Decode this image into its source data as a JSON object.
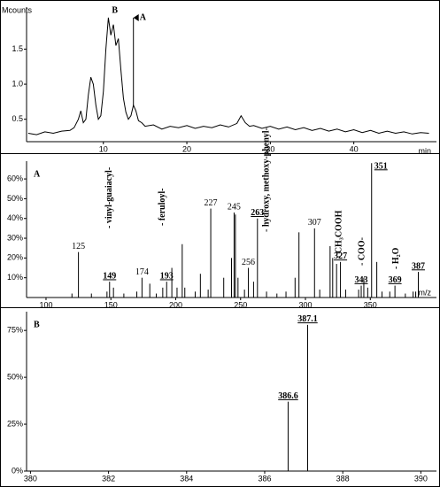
{
  "chart_data": [
    {
      "type": "line",
      "y_label": "Mcounts",
      "x_label": "min",
      "color": "#000000",
      "x": [
        1,
        2,
        3,
        4,
        5,
        6,
        6.5,
        7,
        7.3,
        7.6,
        7.9,
        8.2,
        8.5,
        8.8,
        9.1,
        9.4,
        9.7,
        10,
        10.3,
        10.6,
        10.9,
        11.2,
        11.5,
        11.8,
        12.1,
        12.4,
        12.7,
        13,
        13.3,
        13.6,
        13.9,
        14.2,
        14.6,
        15,
        16,
        17,
        18,
        19,
        20,
        21,
        22,
        23,
        24,
        25,
        26,
        26.5,
        27,
        27.5,
        28,
        29,
        30,
        31,
        32,
        33,
        34,
        35,
        36,
        37,
        38,
        39,
        40,
        41,
        42,
        43,
        44,
        45,
        46,
        47,
        48,
        49
      ],
      "values": [
        0.3,
        0.28,
        0.32,
        0.3,
        0.33,
        0.34,
        0.38,
        0.5,
        0.62,
        0.45,
        0.5,
        0.85,
        1.1,
        1.0,
        0.7,
        0.5,
        0.55,
        0.9,
        1.5,
        1.95,
        1.7,
        1.85,
        1.55,
        1.65,
        1.2,
        0.8,
        0.6,
        0.5,
        0.55,
        0.7,
        0.62,
        0.48,
        0.45,
        0.4,
        0.42,
        0.36,
        0.4,
        0.38,
        0.41,
        0.37,
        0.4,
        0.38,
        0.42,
        0.39,
        0.44,
        0.55,
        0.45,
        0.4,
        0.41,
        0.37,
        0.4,
        0.36,
        0.39,
        0.35,
        0.38,
        0.34,
        0.37,
        0.33,
        0.36,
        0.32,
        0.35,
        0.31,
        0.34,
        0.3,
        0.33,
        0.3,
        0.32,
        0.29,
        0.31,
        0.3
      ],
      "xlim": [
        0.8,
        49.9
      ],
      "ylim": [
        0.18,
        2.1
      ],
      "xticks": [
        10,
        20,
        30,
        40
      ],
      "yticks": [
        0.5,
        {
          "value": 1,
          "label": "1.0"
        },
        1.5
      ],
      "annotations": [
        {
          "text": "B",
          "x": 10.6
        },
        {
          "text": "A",
          "x": 13.6
        }
      ]
    },
    {
      "type": "stem",
      "label": "A",
      "x_label": "m/z",
      "color": "#000000",
      "xlim": [
        85,
        401
      ],
      "ylim": [
        0,
        69
      ],
      "xticks": [
        100,
        150,
        200,
        250,
        300,
        350
      ],
      "yticks": [
        {
          "value": 10,
          "label": "10%"
        },
        {
          "value": 20,
          "label": "20%"
        },
        {
          "value": 30,
          "label": "30%"
        },
        {
          "value": 40,
          "label": "40%"
        },
        {
          "value": 50,
          "label": "50%"
        },
        {
          "value": 60,
          "label": "60%"
        }
      ],
      "series": [
        {
          "style": "plain",
          "x": [
            125,
            174,
            227,
            245,
            256,
            307
          ],
          "values": [
            23,
            10,
            45,
            43,
            15,
            35
          ]
        },
        {
          "style": "bold",
          "x": [
            149,
            193,
            263,
            327,
            343,
            351,
            369,
            387
          ],
          "values": [
            8,
            8,
            40,
            18,
            6,
            68,
            6,
            13
          ]
        },
        {
          "style": "unlabeled",
          "x": [
            120,
            135,
            147,
            152,
            160,
            170,
            180,
            185,
            190,
            197,
            201,
            205,
            207,
            215,
            219,
            225,
            237,
            243,
            246,
            248,
            253,
            260,
            270,
            278,
            285,
            292,
            295,
            311,
            319,
            321,
            324,
            331,
            341,
            345,
            348,
            355,
            359,
            365,
            377,
            383,
            385
          ],
          "values": [
            2,
            2,
            3,
            5,
            2,
            3,
            7,
            2,
            5,
            15,
            5,
            27,
            5,
            3,
            12,
            4,
            10,
            20,
            42,
            10,
            4,
            8,
            3,
            2,
            3,
            10,
            33,
            4,
            26,
            20,
            17,
            4,
            4,
            10,
            5,
            18,
            3,
            3,
            2,
            3,
            3
          ]
        }
      ],
      "annotations": [
        {
          "text": "- vinyl-guaiacyl-",
          "x": 151
        },
        {
          "text": "- feruloyl-",
          "x": 192
        },
        {
          "text": "- hydroxy, methoxy-phenyl-",
          "x": 272
        },
        {
          "text": "- CH₃COOH",
          "x": 328
        },
        {
          "text": "- COO-",
          "x": 346
        },
        {
          "text": "- H₂O",
          "x": 372
        }
      ]
    },
    {
      "type": "stem",
      "label": "B",
      "color": "#000000",
      "xlim": [
        379.9,
        390.4
      ],
      "ylim": [
        0,
        85
      ],
      "xticks": [
        380,
        382,
        384,
        386,
        388,
        390
      ],
      "yticks": [
        {
          "value": 0,
          "label": "0%"
        },
        {
          "value": 25,
          "label": "25%"
        },
        {
          "value": 50,
          "label": "50%"
        },
        {
          "value": 75,
          "label": "75%"
        }
      ],
      "series": [
        {
          "style": "bold",
          "x": [
            386.6,
            387.1
          ],
          "values": [
            37,
            78
          ]
        }
      ]
    }
  ]
}
